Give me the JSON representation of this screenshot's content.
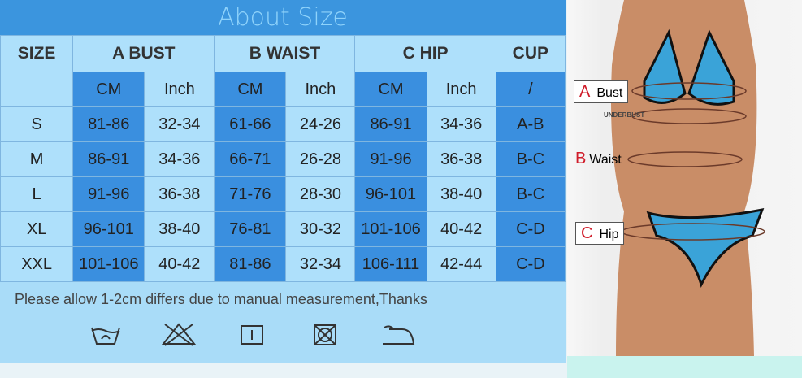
{
  "title": "About Size",
  "header": [
    "SIZE",
    "A BUST",
    "B WAIST",
    "C HIP",
    "CUP"
  ],
  "subheader": [
    "CM",
    "Inch",
    "CM",
    "Inch",
    "CM",
    "Inch",
    "/"
  ],
  "rows": [
    [
      "S",
      "81-86",
      "32-34",
      "61-66",
      "24-26",
      "86-91",
      "34-36",
      "A-B"
    ],
    [
      "M",
      "86-91",
      "34-36",
      "66-71",
      "26-28",
      "91-96",
      "36-38",
      "B-C"
    ],
    [
      "L",
      "91-96",
      "36-38",
      "71-76",
      "28-30",
      "96-101",
      "38-40",
      "B-C"
    ],
    [
      "XL",
      "96-101",
      "38-40",
      "76-81",
      "30-32",
      "101-106",
      "40-42",
      "C-D"
    ],
    [
      "XXL",
      "101-106",
      "40-42",
      "81-86",
      "32-34",
      "106-111",
      "42-44",
      "C-D"
    ]
  ],
  "note": "Please allow 1-2cm differs due to manual measurement,Thanks",
  "care_icons": [
    "hand-wash-icon",
    "no-bleach-icon",
    "tumble-dry-icon",
    "no-dry-clean-icon",
    "iron-icon"
  ],
  "figure": {
    "a_letter": "A",
    "a_label": "Bust",
    "underbust": "UNDERBUST",
    "b_letter": "B",
    "b_label": "Waist",
    "c_letter": "C",
    "c_label": "Hip"
  },
  "colors": {
    "title_bar": "#3b95de",
    "cell_light": "#aee0fb",
    "cell_dark": "#3a8fdf",
    "swimsuit": "#3aa3d8"
  }
}
